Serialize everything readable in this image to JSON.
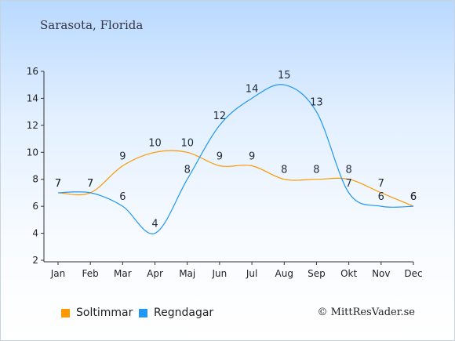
{
  "page": {
    "location": "Sarasota, Florida",
    "credit": "© MittResVader.se"
  },
  "chart_data": {
    "type": "line",
    "categories": [
      "Jan",
      "Feb",
      "Mar",
      "Apr",
      "Maj",
      "Jun",
      "Jul",
      "Aug",
      "Sep",
      "Okt",
      "Nov",
      "Dec"
    ],
    "ylim": [
      2,
      16
    ],
    "yticks": [
      2,
      4,
      6,
      8,
      10,
      12,
      14,
      16
    ],
    "series": [
      {
        "name": "Soltimmar",
        "color": "#ff9800",
        "values": [
          7,
          7,
          9,
          10,
          10,
          9,
          9,
          8,
          8,
          8,
          7,
          6
        ]
      },
      {
        "name": "Regndagar",
        "color": "#2196f3",
        "values": [
          7,
          7,
          6,
          4,
          8,
          12,
          14,
          15,
          13,
          7,
          6,
          6
        ]
      }
    ]
  }
}
